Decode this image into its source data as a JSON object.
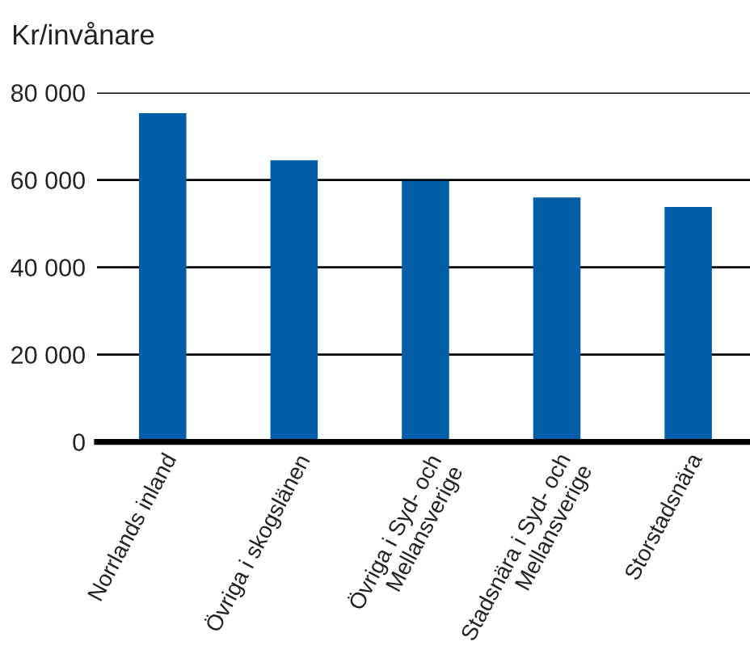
{
  "chart_data": {
    "type": "bar",
    "ylabel": "Kr/invånare",
    "categories": [
      "Norrlands inland",
      "Övriga i skogslänen",
      "Övriga i Syd- och\nMellansverige",
      "Stadsnära i Syd- och\nMellansverige",
      "Storstadsnära"
    ],
    "values": [
      75300,
      64500,
      59800,
      56000,
      53800
    ],
    "color": "#005da8",
    "ylim": [
      0,
      80000
    ],
    "yticks": [
      0,
      {
        "value": 20000,
        "label": "20 000"
      },
      {
        "value": 40000,
        "label": "40 000"
      },
      {
        "value": 60000,
        "label": "60 000"
      },
      {
        "value": 80000,
        "label": "80 000"
      }
    ],
    "grid": "y"
  }
}
